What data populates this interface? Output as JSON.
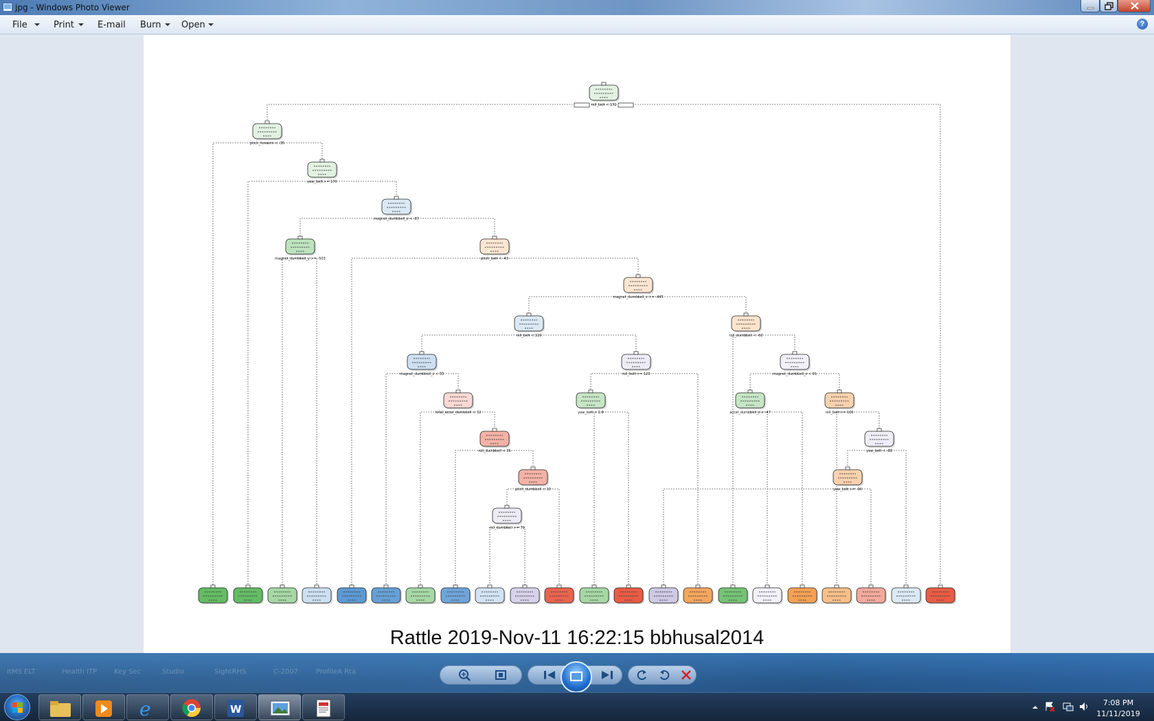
{
  "window": {
    "title": "jpg - Windows Photo Viewer"
  },
  "menu": {
    "items": [
      "File",
      "Print",
      "E-mail",
      "Burn",
      "Open"
    ],
    "help": "?"
  },
  "image": {
    "caption": "Rattle 2019-Nov-11 16:22:15 bbhusal2014"
  },
  "tree": {
    "root_split": "roll_belt < 131",
    "split_labels": [
      "roll_belt < 131",
      "pitch_forearm < -35",
      "yaw_belt >= 170",
      "magnet_dumbbell_z < -87",
      "magnet_dumbbell_y >= -503",
      "pitch_belt < -43",
      "magnet_dumbbell_z >= -445",
      "roll_belt < 119",
      "roll_dumbbell < -62",
      "magnet_dumbbell_z < 33",
      "roll_belt >= 123",
      "magnet_dumbbell_z < 91",
      "total_accel_dumbbell < 32",
      "yaw_belt < 1.8",
      "accel_dumbbell_z < -47",
      "roll_belt >= 106",
      "roll_dumbbell < 36",
      "yaw_belt < -88",
      "pitch_dumbbell < 10",
      "yaw_belt >= -90",
      "roll_dumbbell >= 79"
    ],
    "node_colors": {
      "A": "#5cb85c",
      "B": "#4a8fcf",
      "C": "#f39c4a",
      "D": "#a79cd1",
      "E": "#e8533a"
    }
  },
  "taskbar": {
    "clock_time": "7:08 PM",
    "clock_date": "11/11/2019",
    "ghost_labels": [
      "ItMS ELT",
      "Health ITP",
      "Key Sec",
      "Studio",
      "SightRHS",
      "C-2007",
      "ProfileA Rta"
    ]
  }
}
